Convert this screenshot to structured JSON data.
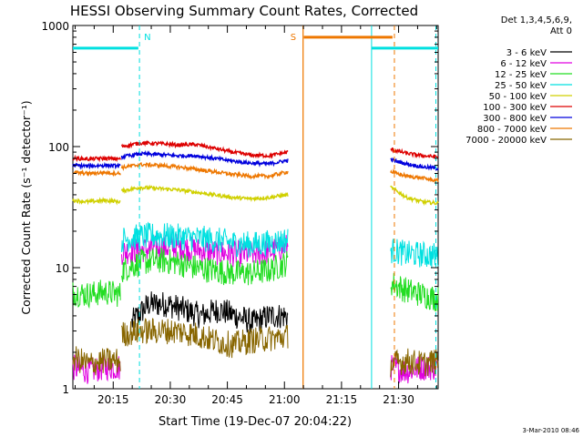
{
  "chart_data": {
    "type": "line",
    "title": "HESSI Observing Summary Count Rates, Corrected",
    "xlabel": "Start Time (19-Dec-07 20:04:22)",
    "ylabel": "Corrected Count Rate (s⁻¹ detector⁻¹)",
    "ylog": true,
    "ylim": [
      1,
      1000
    ],
    "xlim_minutes": [
      0,
      96
    ],
    "x_ticks": [
      {
        "minutes": 10.6,
        "label": "20:15"
      },
      {
        "minutes": 25.6,
        "label": "20:30"
      },
      {
        "minutes": 40.6,
        "label": "20:45"
      },
      {
        "minutes": 55.6,
        "label": "21:00"
      },
      {
        "minutes": 70.6,
        "label": "21:15"
      },
      {
        "minutes": 85.6,
        "label": "21:30"
      }
    ],
    "y_ticks": [
      {
        "value": 1,
        "label": "1"
      },
      {
        "value": 10,
        "label": "10"
      },
      {
        "value": 100,
        "label": "100"
      },
      {
        "value": 1000,
        "label": "1000"
      }
    ],
    "legend": {
      "header_lines": [
        "Det 1,3,4,5,6,9,",
        "Att 0"
      ],
      "position": "right"
    },
    "series": [
      {
        "name": "3 - 6 keV",
        "color": "#000000",
        "style": "noisy",
        "segments": [
          {
            "x0": 15.5,
            "x1": 56.5,
            "values": [
              3.5,
              5,
              5,
              4.5,
              4,
              4.5,
              4,
              3.5,
              4,
              4
            ]
          }
        ]
      },
      {
        "name": "6 - 12 keV",
        "color": "#e000e0",
        "style": "noisy",
        "segments": [
          {
            "x0": 0,
            "x1": 12.5,
            "values": [
              1.5,
              1.4,
              1.5,
              1.5
            ]
          },
          {
            "x0": 12.8,
            "x1": 56.5,
            "values": [
              13.5,
              14,
              14.5,
              15,
              14,
              13.5,
              13,
              13,
              13.5,
              15
            ]
          },
          {
            "x0": 83.5,
            "x1": 96,
            "values": [
              1.5,
              1.4,
              1.5,
              1.5
            ]
          }
        ]
      },
      {
        "name": "12 - 25 keV",
        "color": "#22dd22",
        "style": "noisy",
        "segments": [
          {
            "x0": 0,
            "x1": 12.5,
            "values": [
              6.2,
              6,
              6.3,
              6
            ]
          },
          {
            "x0": 12.8,
            "x1": 56.5,
            "values": [
              9.5,
              11,
              11.5,
              11,
              10,
              9.5,
              9,
              9,
              9.5,
              11
            ]
          },
          {
            "x0": 83.5,
            "x1": 96,
            "values": [
              7.5,
              6.5,
              6,
              5.5
            ]
          }
        ]
      },
      {
        "name": "25 - 50 keV",
        "color": "#00e0e0",
        "style": "noisy",
        "segments": [
          {
            "x0": 12.8,
            "x1": 56.5,
            "values": [
              17,
              18,
              18.5,
              18,
              17.5,
              17,
              16,
              15.5,
              16,
              17
            ]
          },
          {
            "x0": 83.5,
            "x1": 96,
            "values": [
              14,
              13,
              12.8,
              12.5
            ]
          }
        ]
      },
      {
        "name": "50 - 100 keV",
        "color": "#d0d000",
        "style": "band",
        "segments": [
          {
            "x0": 0,
            "x1": 12.5,
            "values": [
              36,
              35,
              36,
              35
            ]
          },
          {
            "x0": 12.8,
            "x1": 56.5,
            "values": [
              43,
              46,
              45,
              44,
              42,
              40,
              38,
              37,
              38,
              40
            ]
          },
          {
            "x0": 83.5,
            "x1": 96,
            "values": [
              46,
              38,
              35,
              34
            ]
          }
        ]
      },
      {
        "name": "100 - 300 keV",
        "color": "#dd0000",
        "style": "band",
        "segments": [
          {
            "x0": 0,
            "x1": 12.5,
            "values": [
              80,
              79,
              80,
              79
            ]
          },
          {
            "x0": 12.8,
            "x1": 56.5,
            "values": [
              100,
              107,
              106,
              103,
              104,
              97,
              90,
              85,
              84,
              90
            ]
          },
          {
            "x0": 83.5,
            "x1": 96,
            "values": [
              95,
              88,
              84,
              82
            ]
          }
        ]
      },
      {
        "name": "300 - 800 keV",
        "color": "#0000dd",
        "style": "band",
        "segments": [
          {
            "x0": 0,
            "x1": 12.5,
            "values": [
              70,
              69,
              70,
              69
            ]
          },
          {
            "x0": 12.8,
            "x1": 56.5,
            "values": [
              82,
              87,
              86,
              84,
              84,
              80,
              76,
              73,
              72,
              77
            ]
          },
          {
            "x0": 83.5,
            "x1": 96,
            "values": [
              78,
              72,
              68,
              66
            ]
          }
        ]
      },
      {
        "name": "800 - 7000 keV",
        "color": "#ee7700",
        "style": "band",
        "segments": [
          {
            "x0": 0,
            "x1": 12.5,
            "values": [
              61,
              60,
              61,
              60
            ]
          },
          {
            "x0": 12.8,
            "x1": 56.5,
            "values": [
              67,
              71,
              70,
              68,
              65,
              62,
              59,
              57,
              57,
              62
            ]
          },
          {
            "x0": 83.5,
            "x1": 96,
            "values": [
              62,
              57,
              55,
              52
            ]
          }
        ]
      },
      {
        "name": "7000 - 20000 keV",
        "color": "#886600",
        "style": "noisy",
        "segments": [
          {
            "x0": 0,
            "x1": 12.5,
            "values": [
              1.8,
              1.6,
              1.7,
              1.7
            ]
          },
          {
            "x0": 12.8,
            "x1": 56.5,
            "values": [
              2.8,
              3,
              3,
              3,
              2.8,
              2.5,
              2.3,
              2.5,
              2.6,
              2.7
            ]
          },
          {
            "x0": 83.5,
            "x1": 96,
            "values": [
              1.6,
              1.7,
              1.6,
              1.7
            ]
          }
        ]
      }
    ],
    "flags": [
      {
        "label": "N",
        "color": "#00e0e0",
        "value": 650,
        "bar": [
          {
            "x0": 0,
            "x1": 17.2
          },
          {
            "x0": 78.5,
            "x1": 96
          }
        ],
        "lines": [
          {
            "x": 17.5,
            "dashed": true
          },
          {
            "x": 78.5,
            "dashed": false
          },
          {
            "x": 95.4,
            "dashed": true
          }
        ]
      },
      {
        "label": "S",
        "color": "#ee7700",
        "value": 800,
        "bar": [
          {
            "x0": 60.7,
            "x1": 84.0
          }
        ],
        "lines": [
          {
            "x": 60.5,
            "dashed": false
          },
          {
            "x": 84.5,
            "dashed": true
          }
        ]
      }
    ],
    "gaps": [
      {
        "x0": 60.5,
        "x1": 83.5
      }
    ],
    "ymax_bar": {
      "x0": 60.5,
      "x1": 84.0
    }
  },
  "footer": {
    "timestamp": "3-Mar-2010 08:46"
  }
}
